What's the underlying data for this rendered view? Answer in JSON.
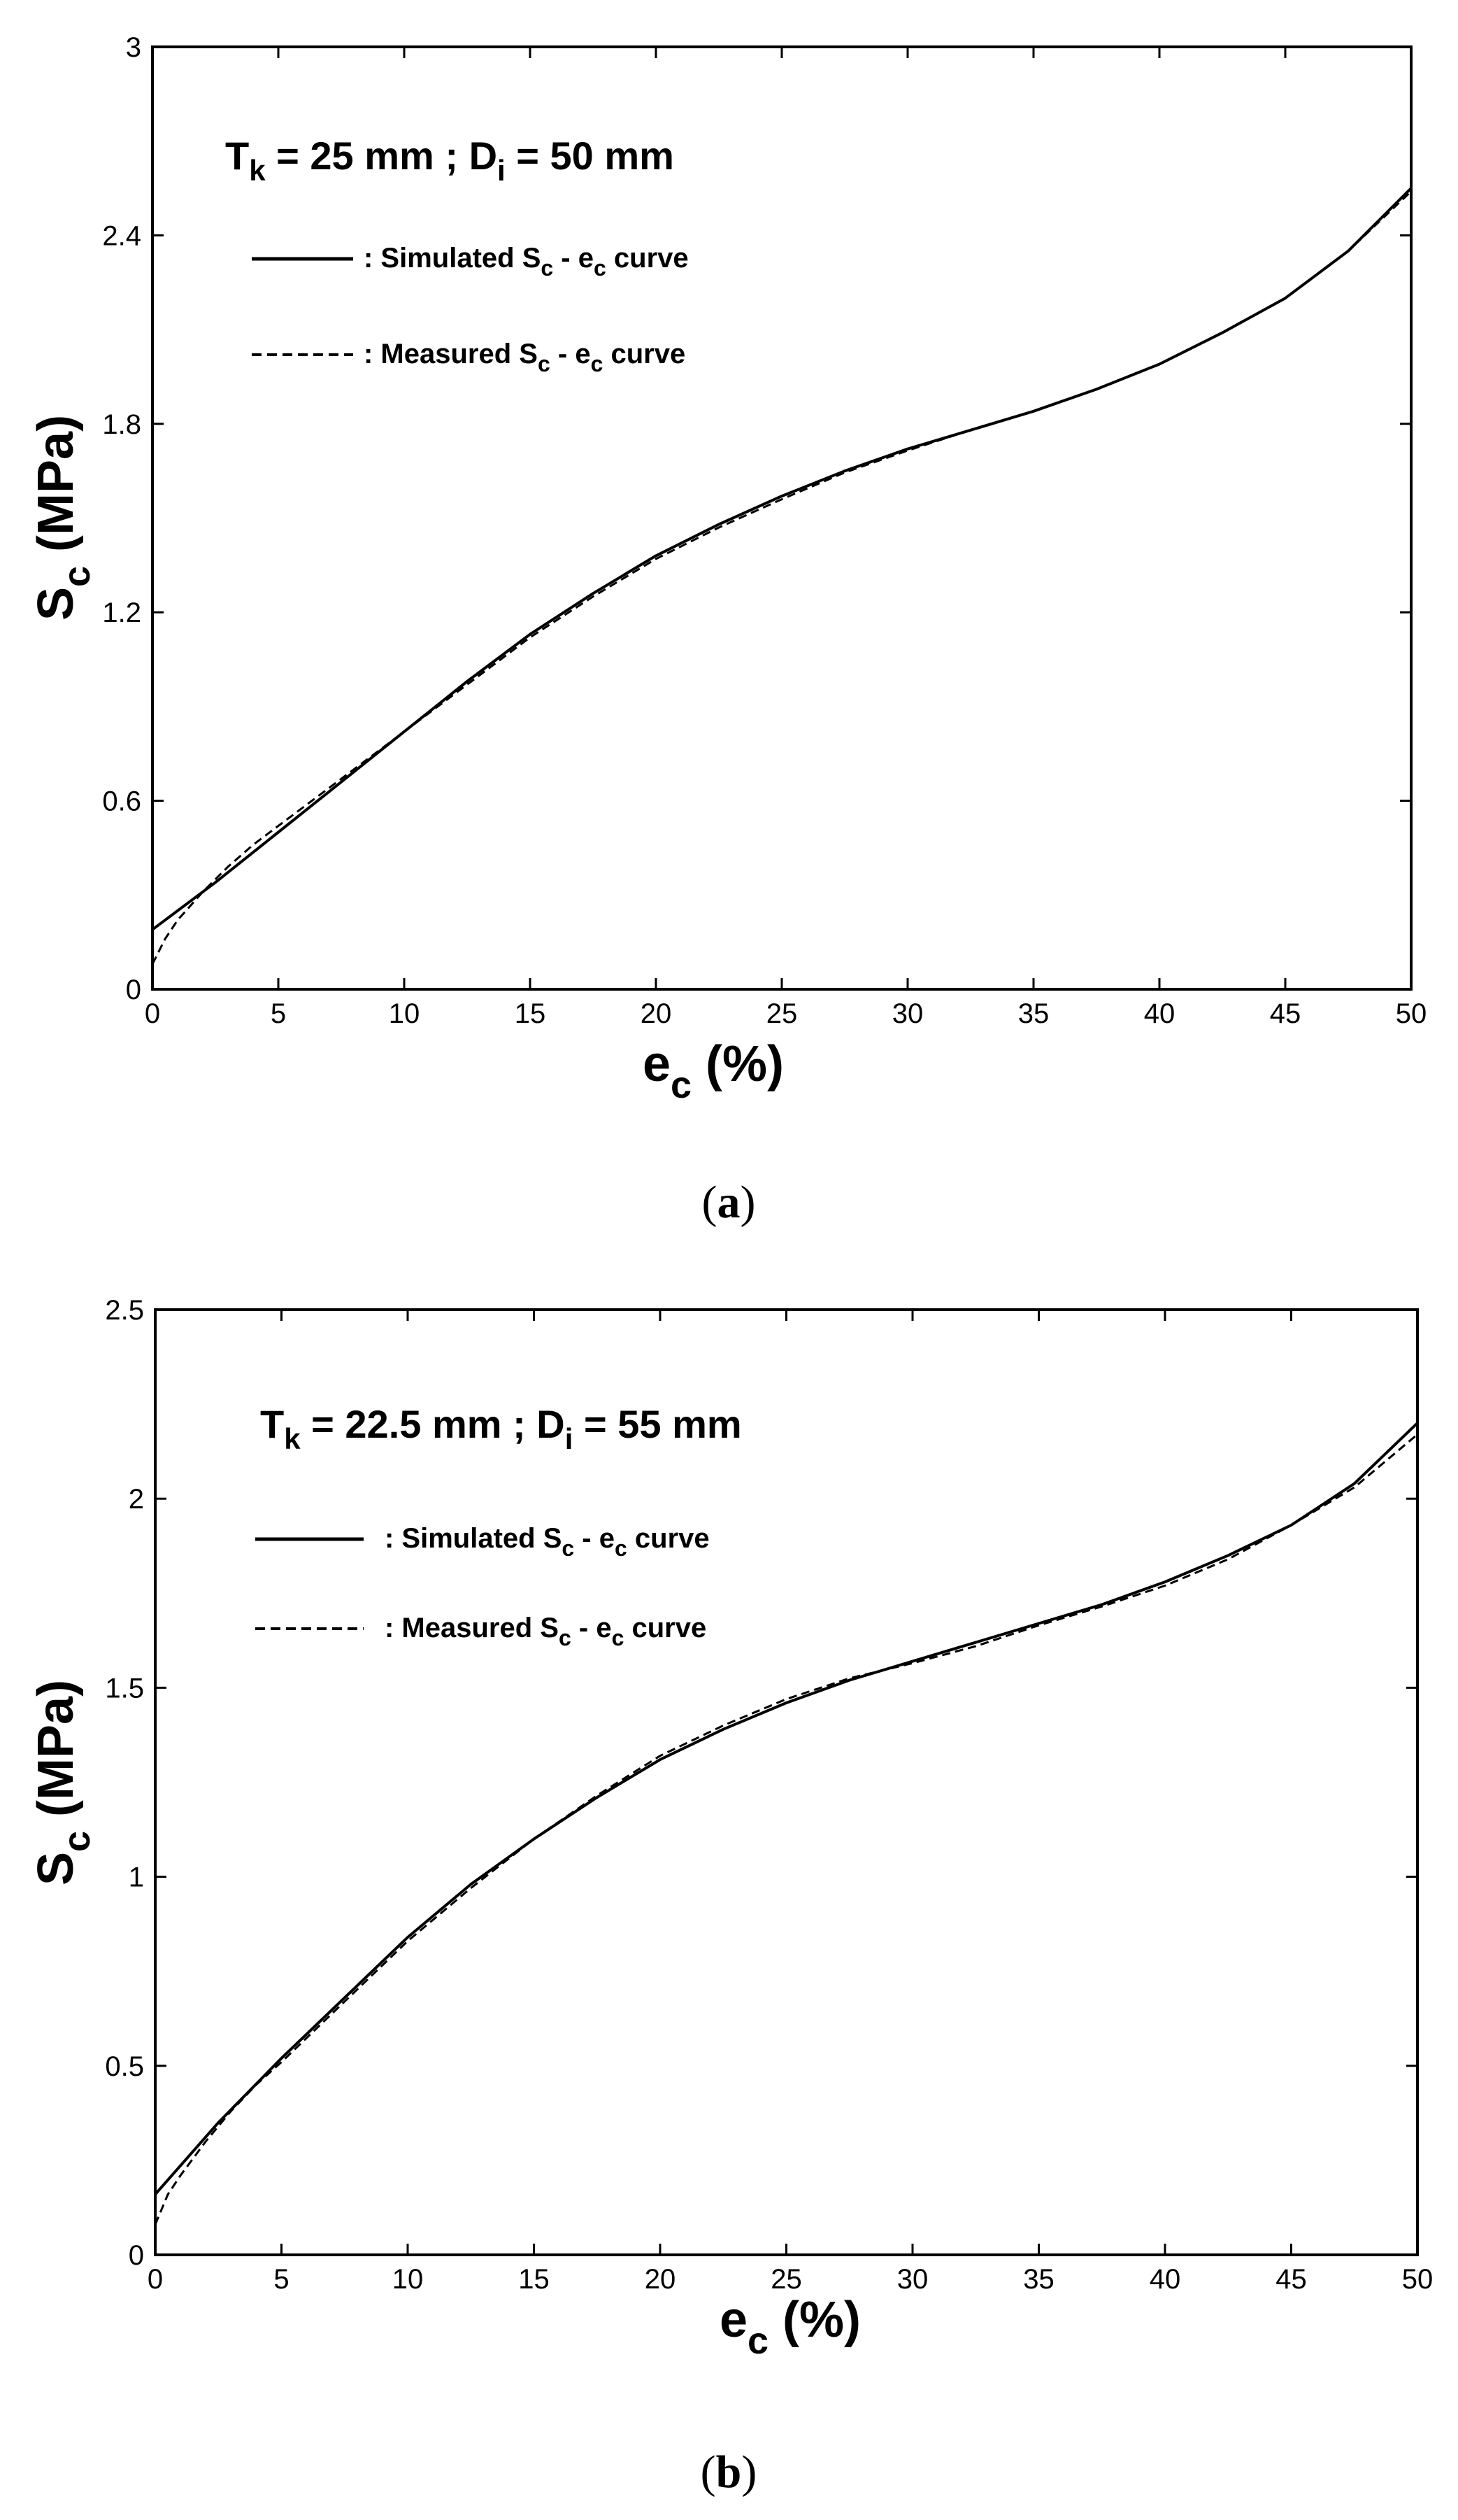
{
  "chart_data": [
    {
      "type": "line",
      "caption": {
        "open": "(",
        "letter": "a",
        "close": ")"
      },
      "xlim": [
        0,
        50
      ],
      "ylim": [
        0,
        3
      ],
      "xticks": [
        "0",
        "5",
        "10",
        "15",
        "20",
        "25",
        "30",
        "35",
        "40",
        "45",
        "50"
      ],
      "yticks": [
        "0",
        "0.6",
        "1.2",
        "1.8",
        "2.4",
        "3"
      ],
      "xlabel": {
        "main": "e",
        "sub": "c",
        "rest": " (%)"
      },
      "ylabel": {
        "main": "S",
        "sub": "c",
        "rest": " (MPa)"
      },
      "condition": {
        "t": "T",
        "t_sub": "k",
        "t_rest": " = 25 mm ; D",
        "d_sub": "i",
        "d_rest": " = 50 mm"
      },
      "legend": [
        {
          "style": "solid",
          "a": ": Simulated S",
          "sub1": "c",
          "b": " - e",
          "sub2": "c",
          "c": " curve"
        },
        {
          "style": "dashed",
          "a": ": Measured S",
          "sub1": "c",
          "b": " - e",
          "sub2": "c",
          "c": " curve"
        }
      ],
      "grid": false,
      "series": [
        {
          "style": "solid",
          "x": [
            0,
            2.5,
            5,
            7.5,
            10,
            12.5,
            15,
            17.5,
            20,
            22.5,
            25,
            27.5,
            30,
            32.5,
            35,
            37.5,
            40,
            42.5,
            45,
            47.5,
            50
          ],
          "y": [
            0.19,
            0.34,
            0.5,
            0.66,
            0.82,
            0.98,
            1.13,
            1.26,
            1.38,
            1.48,
            1.57,
            1.65,
            1.72,
            1.78,
            1.84,
            1.91,
            1.99,
            2.09,
            2.2,
            2.35,
            2.55
          ]
        },
        {
          "style": "dashed",
          "x": [
            0,
            0.5,
            1,
            2,
            3,
            4,
            5,
            7.5,
            10,
            12.5,
            15,
            17.5,
            20,
            22.5,
            25,
            27.5,
            30,
            32.5,
            35,
            37.5,
            40,
            42.5,
            45,
            47.5,
            50
          ],
          "y": [
            0.08,
            0.16,
            0.22,
            0.31,
            0.39,
            0.46,
            0.52,
            0.67,
            0.82,
            0.97,
            1.12,
            1.25,
            1.37,
            1.47,
            1.56,
            1.645,
            1.715,
            1.78,
            1.84,
            1.91,
            1.99,
            2.09,
            2.2,
            2.35,
            2.54
          ]
        }
      ]
    },
    {
      "type": "line",
      "caption": {
        "open": "(",
        "letter": "b",
        "close": ")"
      },
      "xlim": [
        0,
        50
      ],
      "ylim": [
        0,
        2.5
      ],
      "xticks": [
        "0",
        "5",
        "10",
        "15",
        "20",
        "25",
        "30",
        "35",
        "40",
        "45",
        "50"
      ],
      "yticks": [
        "0",
        "0.5",
        "1",
        "1.5",
        "2",
        "2.5"
      ],
      "xlabel": {
        "main": "e",
        "sub": "c",
        "rest": " (%)"
      },
      "ylabel": {
        "main": "S",
        "sub": "c",
        "rest": " (MPa)"
      },
      "condition": {
        "t": "T",
        "t_sub": "k",
        "t_rest": " = 22.5 mm ; D",
        "d_sub": "i",
        "d_rest": " = 55 mm"
      },
      "legend": [
        {
          "style": "solid",
          "a": ": Simulated S",
          "sub1": "c",
          "b": " - e",
          "sub2": "c",
          "c": " curve"
        },
        {
          "style": "dashed",
          "a": ": Measured S",
          "sub1": "c",
          "b": " - e",
          "sub2": "c",
          "c": " curve"
        }
      ],
      "grid": false,
      "series": [
        {
          "style": "solid",
          "x": [
            0,
            2.5,
            5,
            7.5,
            10,
            12.5,
            15,
            17.5,
            20,
            22.5,
            25,
            27.5,
            30,
            32.5,
            35,
            37.5,
            40,
            42.5,
            45,
            47.5,
            50
          ],
          "y": [
            0.16,
            0.35,
            0.52,
            0.68,
            0.84,
            0.98,
            1.1,
            1.21,
            1.31,
            1.39,
            1.46,
            1.52,
            1.57,
            1.62,
            1.67,
            1.72,
            1.78,
            1.85,
            1.93,
            2.04,
            2.2
          ]
        },
        {
          "style": "dashed",
          "x": [
            0,
            0.5,
            1,
            2,
            3,
            4,
            5,
            7.5,
            10,
            12.5,
            15,
            17.5,
            20,
            22.5,
            25,
            27.5,
            30,
            32.5,
            35,
            37.5,
            40,
            42.5,
            45,
            47.5,
            50
          ],
          "y": [
            0.08,
            0.16,
            0.21,
            0.3,
            0.38,
            0.45,
            0.51,
            0.67,
            0.83,
            0.97,
            1.1,
            1.215,
            1.32,
            1.4,
            1.47,
            1.525,
            1.565,
            1.61,
            1.665,
            1.715,
            1.77,
            1.84,
            1.93,
            2.03,
            2.17
          ]
        }
      ]
    }
  ]
}
